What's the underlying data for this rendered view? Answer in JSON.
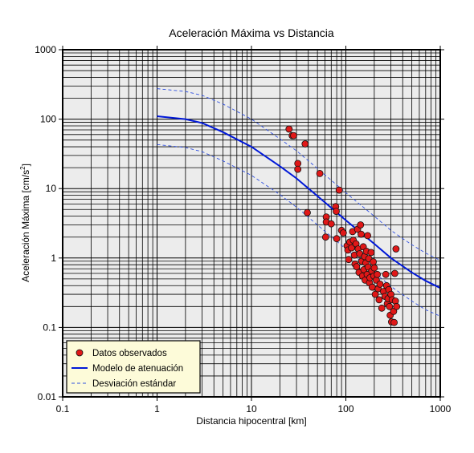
{
  "chart_data": {
    "type": "scatter",
    "title": "Aceleración Máxima vs Distancia",
    "xlabel": "Distancia hipocentral [km]",
    "ylabel_main": "Aceleración Máxima [cm/s",
    "ylabel_sup": "2",
    "ylabel_close": "]",
    "xscale": "log",
    "yscale": "log",
    "xlim": [
      0.1,
      1000
    ],
    "ylim": [
      0.01,
      1000
    ],
    "grid": true,
    "xticks": [
      {
        "value": 0.1,
        "label": "0.1"
      },
      {
        "value": 1,
        "label": "1"
      },
      {
        "value": 10,
        "label": "10"
      },
      {
        "value": 100,
        "label": "100"
      },
      {
        "value": 1000,
        "label": "1000"
      }
    ],
    "yticks": [
      {
        "value": 0.01,
        "label": "0.01"
      },
      {
        "value": 0.1,
        "label": "0.1"
      },
      {
        "value": 1,
        "label": "1"
      },
      {
        "value": 10,
        "label": "10"
      },
      {
        "value": 100,
        "label": "100"
      },
      {
        "value": 1000,
        "label": "1000"
      }
    ],
    "legend_position": "bottom-left",
    "legend": [
      {
        "label": "Datos observados",
        "kind": "marker",
        "color": "#e01818"
      },
      {
        "label": "Modelo de atenuación",
        "kind": "line",
        "color": "#0018d8"
      },
      {
        "label": "Desviación estándar",
        "kind": "dashed",
        "color": "#3050e0"
      }
    ],
    "series": [
      {
        "name": "Modelo de atenuación",
        "style": "line",
        "color": "#0018d8",
        "points": [
          [
            1,
            110
          ],
          [
            2,
            100
          ],
          [
            3,
            88
          ],
          [
            5,
            65
          ],
          [
            10,
            40
          ],
          [
            20,
            21
          ],
          [
            30,
            14
          ],
          [
            50,
            7.8
          ],
          [
            100,
            3.5
          ],
          [
            200,
            1.6
          ],
          [
            300,
            1.0
          ],
          [
            500,
            0.62
          ],
          [
            700,
            0.47
          ],
          [
            1000,
            0.37
          ]
        ]
      },
      {
        "name": "Desviación estándar",
        "style": "dashed",
        "color": "#3050e0",
        "points": [
          [
            1,
            275
          ],
          [
            2,
            250
          ],
          [
            3,
            220
          ],
          [
            5,
            165
          ],
          [
            10,
            100
          ],
          [
            20,
            52
          ],
          [
            30,
            35
          ],
          [
            50,
            19.5
          ],
          [
            100,
            8.7
          ],
          [
            200,
            4.0
          ],
          [
            300,
            2.5
          ],
          [
            500,
            1.55
          ],
          [
            700,
            1.18
          ],
          [
            1000,
            0.92
          ]
        ]
      },
      {
        "name": "Desviación estándar (inferior)",
        "style": "dashed",
        "color": "#3050e0",
        "points": [
          [
            1,
            43
          ],
          [
            2,
            39
          ],
          [
            3,
            34
          ],
          [
            5,
            25
          ],
          [
            10,
            15.5
          ],
          [
            20,
            8.2
          ],
          [
            30,
            5.4
          ],
          [
            50,
            3.0
          ],
          [
            100,
            1.35
          ],
          [
            200,
            0.62
          ],
          [
            300,
            0.39
          ],
          [
            500,
            0.24
          ],
          [
            700,
            0.18
          ],
          [
            1000,
            0.145
          ]
        ]
      },
      {
        "name": "Datos observados",
        "style": "marker",
        "color": "#e01818",
        "points": [
          [
            25,
            72
          ],
          [
            27,
            58
          ],
          [
            28,
            58
          ],
          [
            31,
            23
          ],
          [
            31,
            19
          ],
          [
            37,
            44
          ],
          [
            39,
            4.5
          ],
          [
            53,
            16.5
          ],
          [
            62,
            3.9
          ],
          [
            62,
            3.3
          ],
          [
            61,
            2.0
          ],
          [
            70,
            3.1
          ],
          [
            78,
            5.5
          ],
          [
            79,
            4.7
          ],
          [
            80,
            1.9
          ],
          [
            85,
            9.5
          ],
          [
            90,
            2.5
          ],
          [
            94,
            2.3
          ],
          [
            103,
            1.5
          ],
          [
            105,
            1.3
          ],
          [
            107,
            0.95
          ],
          [
            110,
            1.7
          ],
          [
            115,
            1.4
          ],
          [
            118,
            2.4
          ],
          [
            120,
            1.8
          ],
          [
            123,
            1.1
          ],
          [
            125,
            0.82
          ],
          [
            128,
            1.6
          ],
          [
            130,
            0.75
          ],
          [
            133,
            2.6
          ],
          [
            135,
            1.35
          ],
          [
            138,
            0.62
          ],
          [
            140,
            1.15
          ],
          [
            143,
            3.0
          ],
          [
            145,
            2.2
          ],
          [
            147,
            0.9
          ],
          [
            150,
            0.55
          ],
          [
            153,
            1.45
          ],
          [
            155,
            0.68
          ],
          [
            158,
            1.05
          ],
          [
            160,
            0.48
          ],
          [
            163,
            0.85
          ],
          [
            165,
            1.25
          ],
          [
            168,
            0.58
          ],
          [
            170,
            2.1
          ],
          [
            172,
            0.74
          ],
          [
            175,
            0.98
          ],
          [
            178,
            0.44
          ],
          [
            180,
            0.52
          ],
          [
            185,
            1.2
          ],
          [
            188,
            0.65
          ],
          [
            190,
            0.38
          ],
          [
            195,
            0.88
          ],
          [
            198,
            0.55
          ],
          [
            200,
            0.72
          ],
          [
            205,
            0.3
          ],
          [
            210,
            0.48
          ],
          [
            215,
            0.58
          ],
          [
            220,
            0.36
          ],
          [
            225,
            0.25
          ],
          [
            230,
            0.42
          ],
          [
            240,
            0.19
          ],
          [
            250,
            0.33
          ],
          [
            260,
            0.28
          ],
          [
            265,
            0.58
          ],
          [
            270,
            0.4
          ],
          [
            275,
            0.22
          ],
          [
            280,
            0.26
          ],
          [
            285,
            0.35
          ],
          [
            290,
            0.2
          ],
          [
            295,
            0.15
          ],
          [
            300,
            0.3
          ],
          [
            305,
            0.12
          ],
          [
            310,
            0.25
          ],
          [
            320,
            0.17
          ],
          [
            325,
            0.118
          ],
          [
            330,
            0.6
          ],
          [
            335,
            0.24
          ],
          [
            340,
            1.35
          ],
          [
            345,
            0.2
          ]
        ]
      }
    ]
  }
}
